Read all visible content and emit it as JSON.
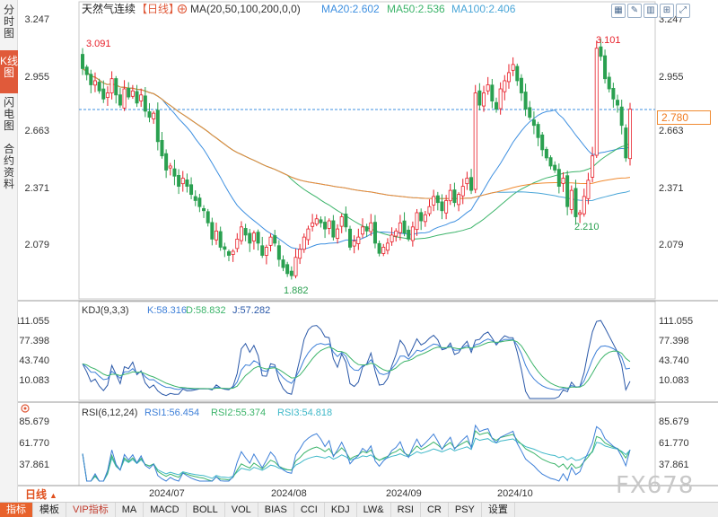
{
  "sidebar": {
    "tabs": [
      "分时图",
      "K线图",
      "闪电图",
      "合约资料"
    ],
    "active": 1
  },
  "header": {
    "title": "天然气连续",
    "period_tag": "【日线】",
    "ma_label": "MA(20,50,100,200,0,0)",
    "ma_values": [
      {
        "label": "MA20:2.602",
        "color": "#3d8fe0"
      },
      {
        "label": "MA50:2.536",
        "color": "#3cb46a"
      },
      {
        "label": "MA100:2.406",
        "color": "#4aa6d8"
      }
    ]
  },
  "price_axis": {
    "ticks": [
      "3.247",
      "2.955",
      "2.663",
      "2.371",
      "2.079"
    ],
    "current": "2.780"
  },
  "annotations": {
    "high1": "3.091",
    "high2": "3.101",
    "low1": "1.882",
    "low2": "2.210"
  },
  "kdj": {
    "title": "KDJ(9,3,3)",
    "values": [
      {
        "label": "K:58.316",
        "color": "#3d7fd8"
      },
      {
        "label": "D:58.832",
        "color": "#3cb46a"
      },
      {
        "label": "J:57.282",
        "color": "#2a58a8"
      }
    ],
    "ticks": [
      "111.055",
      "77.398",
      "43.740",
      "10.083"
    ]
  },
  "rsi": {
    "title": "RSI(6,12,24)",
    "values": [
      {
        "label": "RSI1:56.454",
        "color": "#3d7fd8"
      },
      {
        "label": "RSI2:55.374",
        "color": "#3cb46a"
      },
      {
        "label": "RSI3:54.818",
        "color": "#3fb8c8"
      }
    ],
    "ticks": [
      "85.679",
      "61.770",
      "37.861"
    ]
  },
  "xaxis": {
    "labels": [
      "2024/07",
      "2024/08",
      "2024/09",
      "2024/10"
    ]
  },
  "period_selector": "日线",
  "bottom_tabs": [
    "指标",
    "模板",
    "VIP指标",
    "MA",
    "MACD",
    "BOLL",
    "VOL",
    "BIAS",
    "CCI",
    "KDJ",
    "LW&",
    "RSI",
    "CR",
    "PSY",
    "设置"
  ],
  "watermark": "FX678",
  "colors": {
    "up": "#e8202a",
    "down": "#2aa050",
    "ma20": "#3d8fe0",
    "ma50": "#3cb46a",
    "ma100": "#4aa6d8",
    "ma200": "#f08a30"
  },
  "chart_data": {
    "type": "candlestick",
    "symbol": "天然气连续",
    "period": "日线",
    "ylim": [
      1.85,
      3.3
    ],
    "price_ticks": [
      3.247,
      2.955,
      2.663,
      2.371,
      2.079
    ],
    "last_price": 2.78,
    "closes": [
      2.98,
      2.95,
      2.9,
      2.92,
      2.87,
      2.83,
      2.86,
      2.93,
      2.85,
      2.8,
      2.88,
      2.84,
      2.87,
      2.81,
      2.85,
      2.77,
      2.74,
      2.76,
      2.62,
      2.55,
      2.48,
      2.5,
      2.45,
      2.4,
      2.44,
      2.4,
      2.36,
      2.33,
      2.3,
      2.28,
      2.22,
      2.14,
      2.18,
      2.1,
      2.09,
      2.06,
      2.08,
      2.14,
      2.2,
      2.16,
      2.12,
      2.17,
      2.12,
      2.06,
      2.1,
      2.15,
      2.12,
      2.04,
      2.0,
      1.97,
      1.96,
      2.05,
      2.09,
      2.15,
      2.19,
      2.22,
      2.24,
      2.22,
      2.19,
      2.23,
      2.15,
      2.19,
      2.25,
      2.2,
      2.1,
      2.13,
      2.15,
      2.2,
      2.18,
      2.22,
      2.12,
      2.07,
      2.1,
      2.12,
      2.16,
      2.18,
      2.22,
      2.17,
      2.14,
      2.2,
      2.27,
      2.23,
      2.26,
      2.3,
      2.35,
      2.32,
      2.28,
      2.33,
      2.38,
      2.32,
      2.36,
      2.4,
      2.44,
      2.38,
      2.86,
      2.8,
      2.86,
      2.9,
      2.82,
      2.78,
      2.88,
      2.92,
      2.96,
      3.0,
      2.92,
      2.86,
      2.78,
      2.74,
      2.7,
      2.64,
      2.58,
      2.54,
      2.5,
      2.48,
      2.4,
      2.44,
      2.3,
      2.38,
      2.25,
      2.27,
      2.35,
      2.43,
      2.55,
      3.08,
      3.04,
      2.93,
      2.88,
      2.83,
      2.8,
      2.7,
      2.54,
      2.78
    ],
    "highs": {
      "2024-06-early": 3.091,
      "2024-10-late": 3.101
    },
    "lows": {
      "2024-08-mid": 1.882,
      "2024-10-early": 2.21
    },
    "moving_averages": [
      {
        "name": "MA20",
        "last": 2.602
      },
      {
        "name": "MA50",
        "last": 2.536
      },
      {
        "name": "MA100",
        "last": 2.406
      }
    ],
    "indicators": {
      "KDJ": {
        "K": 58.316,
        "D": 58.832,
        "J": 57.282,
        "ticks": [
          111.055,
          77.398,
          43.74,
          10.083
        ]
      },
      "RSI": {
        "RSI1": 56.454,
        "RSI2": 55.374,
        "RSI3": 54.818,
        "ticks": [
          85.679,
          61.77,
          37.861
        ]
      }
    },
    "x_labels": [
      "2024/07",
      "2024/08",
      "2024/09",
      "2024/10"
    ]
  }
}
